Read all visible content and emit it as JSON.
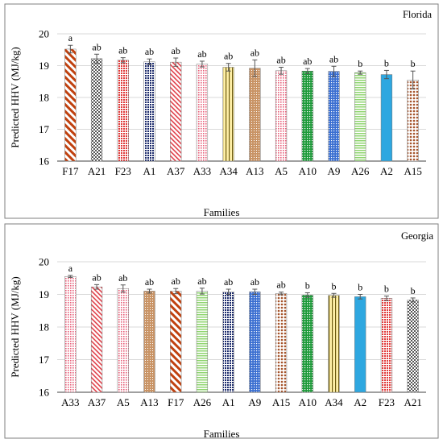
{
  "chart_data": [
    {
      "type": "bar",
      "panel_label": "Florida",
      "xlabel": "Families",
      "ylabel": "Predicted HHV (MJ/kg)",
      "ylim": [
        16,
        20
      ],
      "yticks": [
        16,
        17,
        18,
        19,
        20
      ],
      "grid": true,
      "categories": [
        "F17",
        "A21",
        "F23",
        "A1",
        "A37",
        "A33",
        "A34",
        "A13",
        "A5",
        "A10",
        "A9",
        "A26",
        "A2",
        "A15"
      ],
      "values": [
        19.52,
        19.22,
        19.17,
        19.12,
        19.11,
        19.05,
        18.95,
        18.92,
        18.84,
        18.83,
        18.82,
        18.78,
        18.72,
        18.55
      ],
      "errors": [
        0.12,
        0.14,
        0.08,
        0.09,
        0.13,
        0.09,
        0.12,
        0.26,
        0.11,
        0.08,
        0.16,
        0.05,
        0.13,
        0.28
      ],
      "letters": [
        "a",
        "ab",
        "ab",
        "ab",
        "ab",
        "ab",
        "ab",
        "ab",
        "ab",
        "ab",
        "ab",
        "b",
        "b",
        "b"
      ],
      "patterns": [
        "diag-orange",
        "check-gray",
        "dots-red",
        "dots-navy",
        "diag-red",
        "dots-pink",
        "vstripe-yellow",
        "grid-brown",
        "dots-pink",
        "dots-green",
        "dots-blue",
        "hstripe-green",
        "solid-blue",
        "dots-brown"
      ]
    },
    {
      "type": "bar",
      "panel_label": "Georgia",
      "xlabel": "Families",
      "ylabel": "Predicted HHV (MJ/kg)",
      "ylim": [
        16,
        20
      ],
      "yticks": [
        16,
        17,
        18,
        19,
        20
      ],
      "grid": true,
      "categories": [
        "A33",
        "A37",
        "A5",
        "A13",
        "F17",
        "A26",
        "A1",
        "A9",
        "A15",
        "A10",
        "A34",
        "A2",
        "F23",
        "A21"
      ],
      "values": [
        19.55,
        19.23,
        19.18,
        19.1,
        19.1,
        19.1,
        19.08,
        19.08,
        19.03,
        18.98,
        18.97,
        18.93,
        18.88,
        18.83
      ],
      "errors": [
        0.03,
        0.07,
        0.11,
        0.06,
        0.08,
        0.09,
        0.08,
        0.08,
        0.04,
        0.07,
        0.06,
        0.07,
        0.07,
        0.06
      ],
      "letters": [
        "a",
        "ab",
        "ab",
        "ab",
        "ab",
        "ab",
        "ab",
        "ab",
        "ab",
        "b",
        "b",
        "b",
        "b",
        "b"
      ],
      "patterns": [
        "dots-pink",
        "diag-red",
        "dots-pink",
        "grid-brown",
        "diag-orange",
        "hstripe-green",
        "dots-navy",
        "dots-blue",
        "dots-brown",
        "dots-green",
        "vstripe-yellow",
        "solid-blue",
        "dots-red",
        "check-gray"
      ]
    }
  ]
}
